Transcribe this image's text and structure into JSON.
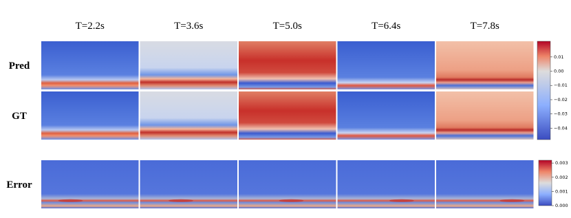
{
  "columns": [
    "T=2.2s",
    "T=3.6s",
    "T=5.0s",
    "T=6.4s",
    "T=7.8s"
  ],
  "rows": [
    "Pred",
    "GT",
    "Error"
  ],
  "colorbars": [
    {
      "lim": [
        -0.048,
        0.021
      ],
      "ticks": [
        {
          "value": 0.01,
          "label": "0.01"
        },
        {
          "value": 0,
          "label": "0.00"
        },
        {
          "value": -0.01,
          "label": "−0.01"
        },
        {
          "value": -0.02,
          "label": "−0.02"
        },
        {
          "value": -0.03,
          "label": "−0.03"
        },
        {
          "value": -0.04,
          "label": "−0.04"
        }
      ]
    },
    {
      "lim": [
        0,
        0.0032
      ],
      "ticks": [
        {
          "value": 0.003,
          "label": "0.003"
        },
        {
          "value": 0.002,
          "label": "0.002"
        },
        {
          "value": 0.001,
          "label": "0.001"
        },
        {
          "value": 0,
          "label": "0.000"
        }
      ]
    }
  ]
}
